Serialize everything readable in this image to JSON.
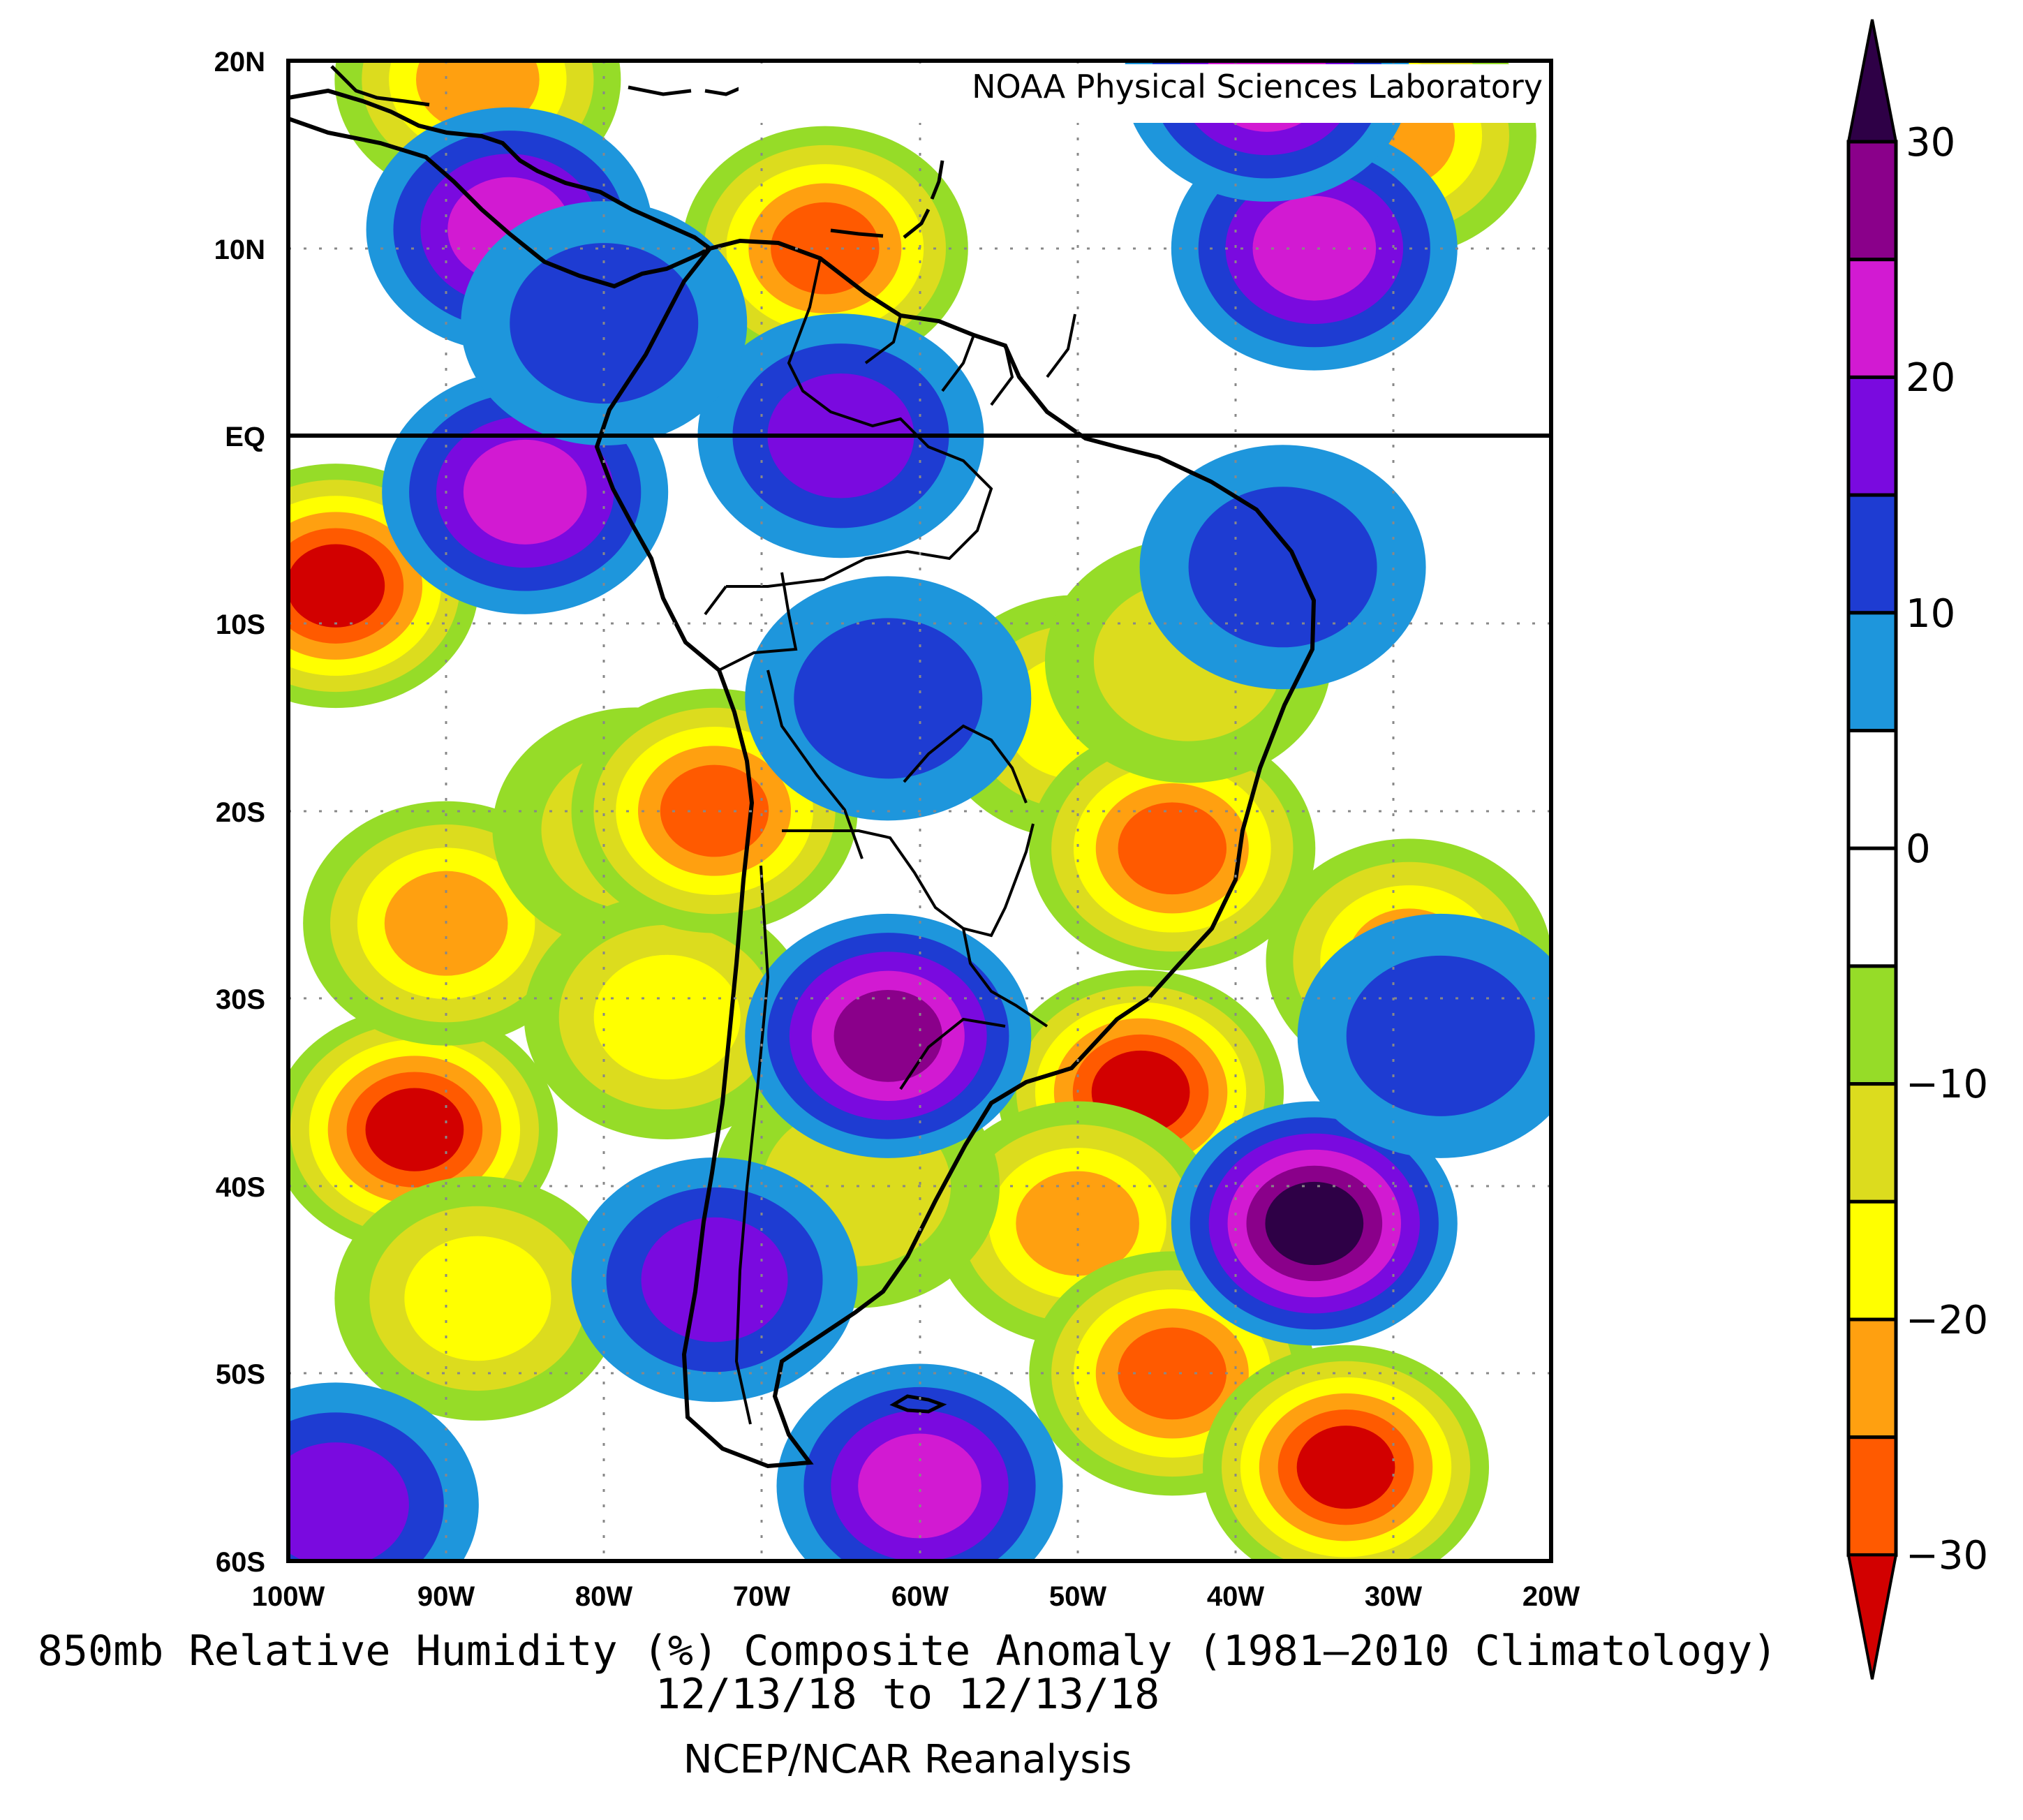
{
  "map": {
    "banner": "NOAA Physical Sciences Laboratory",
    "lat_labels": [
      "20N",
      "10N",
      "EQ",
      "10S",
      "20S",
      "30S",
      "40S",
      "50S",
      "60S"
    ],
    "lon_labels": [
      "100W",
      "90W",
      "80W",
      "70W",
      "60W",
      "50W",
      "40W",
      "30W",
      "20W"
    ],
    "lat_range": [
      -60,
      20
    ],
    "lon_range": [
      -100,
      -20
    ],
    "grid_interval_deg": 10,
    "equator_highlight": true,
    "region": "South America",
    "anomaly_blobs": [
      {
        "lon": -97,
        "lat": -8,
        "value": -30
      },
      {
        "lon": -92,
        "lat": -37,
        "value": -30
      },
      {
        "lon": -90,
        "lat": -26,
        "value": -20
      },
      {
        "lon": -88,
        "lat": -46,
        "value": -15
      },
      {
        "lon": -78,
        "lat": -21,
        "value": -10
      },
      {
        "lon": -76,
        "lat": -31,
        "value": -15
      },
      {
        "lon": -73,
        "lat": -20,
        "value": -25
      },
      {
        "lon": -66,
        "lat": 10,
        "value": -25
      },
      {
        "lon": -88,
        "lat": 19,
        "value": -20
      },
      {
        "lon": -50,
        "lat": -15,
        "value": -15
      },
      {
        "lon": -44,
        "lat": -22,
        "value": -25
      },
      {
        "lon": -43,
        "lat": -12,
        "value": -10
      },
      {
        "lon": -46,
        "lat": -35,
        "value": -30
      },
      {
        "lon": -50,
        "lat": -42,
        "value": -20
      },
      {
        "lon": -44,
        "lat": -50,
        "value": -25
      },
      {
        "lon": -33,
        "lat": -55,
        "value": -30
      },
      {
        "lon": -29,
        "lat": -28,
        "value": -20
      },
      {
        "lon": -30,
        "lat": 16,
        "value": -20
      },
      {
        "lon": -64,
        "lat": -40,
        "value": -10
      },
      {
        "lon": -86,
        "lat": 11,
        "value": 20
      },
      {
        "lon": -85,
        "lat": -3,
        "value": 20
      },
      {
        "lon": -65,
        "lat": 0,
        "value": 15
      },
      {
        "lon": -62,
        "lat": -32,
        "value": 25
      },
      {
        "lon": -35,
        "lat": -42,
        "value": 30
      },
      {
        "lon": -35,
        "lat": 10,
        "value": 20
      },
      {
        "lon": -60,
        "lat": -56,
        "value": 20
      },
      {
        "lon": -73,
        "lat": -45,
        "value": 15
      },
      {
        "lon": -97,
        "lat": -57,
        "value": 15
      },
      {
        "lon": -38,
        "lat": 19,
        "value": 20
      },
      {
        "lon": -80,
        "lat": 6,
        "value": 10
      },
      {
        "lon": -37,
        "lat": -7,
        "value": 10
      },
      {
        "lon": -27,
        "lat": -32,
        "value": 10
      },
      {
        "lon": -62,
        "lat": -14,
        "value": 10
      },
      {
        "lon": -57,
        "lat": -3,
        "value": 0
      },
      {
        "lon": -70,
        "lat": -10,
        "value": 0
      }
    ]
  },
  "colorbar": {
    "labels": [
      "30",
      "20",
      "10",
      "0",
      "−10",
      "−20",
      "−30"
    ],
    "colors": [
      "#2e0046",
      "#8a008a",
      "#d21ad2",
      "#7a0adf",
      "#1e3cd2",
      "#1e96dc",
      "#ffffff",
      "#ffffff",
      "#96dc28",
      "#dcdc1e",
      "#ffff00",
      "#ffa010",
      "#ff5a00",
      "#d20000",
      "#d20000"
    ]
  },
  "caption": {
    "title": "850mb Relative Humidity (%) Composite Anomaly (1981–2010 Climatology)",
    "date_range": "12/13/18  to 12/13/18",
    "source": "NCEP/NCAR Reanalysis"
  }
}
